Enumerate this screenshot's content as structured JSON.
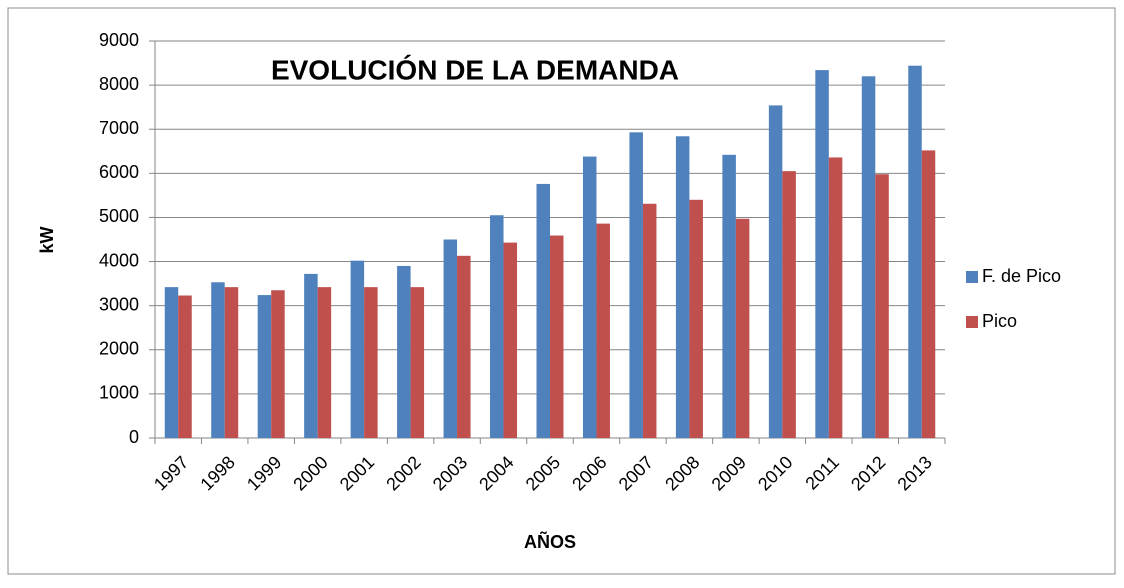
{
  "chart_data": {
    "type": "bar",
    "title": "EVOLUCIÓN DE LA DEMANDA",
    "x_label": "AÑOS",
    "y_label": "kW",
    "categories": [
      "1997",
      "1998",
      "1999",
      "2000",
      "2001",
      "2002",
      "2003",
      "2004",
      "2005",
      "2006",
      "2007",
      "2008",
      "2009",
      "2010",
      "2011",
      "2012",
      "2013"
    ],
    "series": [
      {
        "name": "F. de Pico",
        "color": "#4f81bd",
        "values": [
          3420,
          3530,
          3240,
          3720,
          4020,
          3900,
          4500,
          5050,
          5760,
          6380,
          6930,
          6840,
          6420,
          7540,
          8340,
          8200,
          8440
        ]
      },
      {
        "name": "Pico",
        "color": "#c0504d",
        "values": [
          3230,
          3420,
          3350,
          3420,
          3420,
          3420,
          4130,
          4430,
          4590,
          4860,
          5310,
          5400,
          4970,
          6050,
          6360,
          5980,
          6520
        ]
      }
    ],
    "ylim": [
      0,
      9000
    ],
    "yticks": [
      0,
      1000,
      2000,
      3000,
      4000,
      5000,
      6000,
      7000,
      8000,
      9000
    ],
    "grid": true,
    "legend": "right"
  }
}
